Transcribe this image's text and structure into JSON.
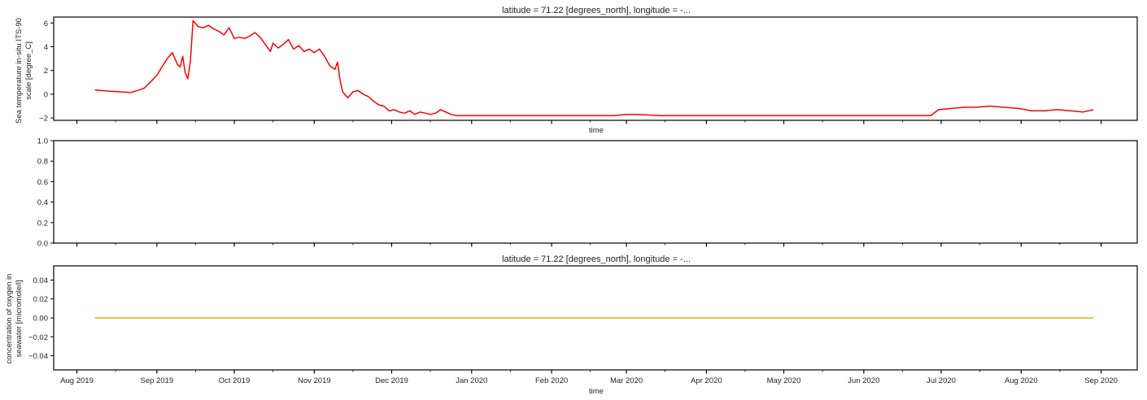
{
  "chart_data": [
    {
      "type": "line",
      "title": "latitude = 71.22 [degrees_north], longitude = -...",
      "xlabel": "time",
      "ylabel": [
        "Sea temperature in-situ ITS-90",
        "scale [degree_C]"
      ],
      "x_axis": "date",
      "xlim": [
        "2019-07-23",
        "2020-09-15"
      ],
      "ylim": [
        -2.2,
        6.5
      ],
      "yticks": [
        -2,
        0,
        2,
        4,
        6
      ],
      "xticks": [
        "2019-08-01",
        "2019-09-01",
        "2019-10-01",
        "2019-11-01",
        "2019-12-01",
        "2020-01-01",
        "2020-02-01",
        "2020-03-01",
        "2020-04-01",
        "2020-05-01",
        "2020-06-01",
        "2020-07-01",
        "2020-08-01",
        "2020-09-01"
      ],
      "xtick_labels": [],
      "grid": false,
      "series": [
        {
          "color": "#ff0000",
          "x": [
            "2019-08-08",
            "2019-08-11",
            "2019-08-14",
            "2019-08-18",
            "2019-08-22",
            "2019-08-25",
            "2019-08-27",
            "2019-08-29",
            "2019-09-01",
            "2019-09-03",
            "2019-09-05",
            "2019-09-07",
            "2019-09-09",
            "2019-09-10",
            "2019-09-11",
            "2019-09-12",
            "2019-09-13",
            "2019-09-14",
            "2019-09-15",
            "2019-09-17",
            "2019-09-19",
            "2019-09-21",
            "2019-09-23",
            "2019-09-25",
            "2019-09-27",
            "2019-09-29",
            "2019-10-01",
            "2019-10-03",
            "2019-10-05",
            "2019-10-07",
            "2019-10-09",
            "2019-10-11",
            "2019-10-13",
            "2019-10-15",
            "2019-10-16",
            "2019-10-18",
            "2019-10-20",
            "2019-10-22",
            "2019-10-24",
            "2019-10-26",
            "2019-10-28",
            "2019-10-30",
            "2019-11-01",
            "2019-11-03",
            "2019-11-05",
            "2019-11-07",
            "2019-11-09",
            "2019-11-10",
            "2019-11-11",
            "2019-11-12",
            "2019-11-14",
            "2019-11-16",
            "2019-11-18",
            "2019-11-20",
            "2019-11-22",
            "2019-11-24",
            "2019-11-26",
            "2019-11-28",
            "2019-11-30",
            "2019-12-02",
            "2019-12-04",
            "2019-12-06",
            "2019-12-08",
            "2019-12-10",
            "2019-12-12",
            "2019-12-14",
            "2019-12-16",
            "2019-12-18",
            "2019-12-20",
            "2019-12-22",
            "2019-12-24",
            "2019-12-26",
            "2019-12-28",
            "2019-12-30",
            "2020-01-05",
            "2020-01-15",
            "2020-01-25",
            "2020-02-05",
            "2020-02-15",
            "2020-02-20",
            "2020-02-25",
            "2020-03-01",
            "2020-03-05",
            "2020-03-15",
            "2020-04-01",
            "2020-04-15",
            "2020-05-01",
            "2020-05-15",
            "2020-06-01",
            "2020-06-10",
            "2020-06-20",
            "2020-06-27",
            "2020-06-30",
            "2020-07-05",
            "2020-07-10",
            "2020-07-15",
            "2020-07-20",
            "2020-07-25",
            "2020-07-31",
            "2020-08-05",
            "2020-08-10",
            "2020-08-15",
            "2020-08-20",
            "2020-08-25",
            "2020-08-29"
          ],
          "y": [
            0.35,
            0.3,
            0.25,
            0.2,
            0.15,
            0.35,
            0.5,
            0.9,
            1.6,
            2.3,
            3.0,
            3.5,
            2.5,
            2.3,
            3.2,
            1.8,
            1.3,
            2.8,
            6.2,
            5.7,
            5.6,
            5.8,
            5.5,
            5.3,
            5.0,
            5.6,
            4.7,
            4.8,
            4.7,
            4.9,
            5.2,
            4.8,
            4.2,
            3.6,
            4.3,
            3.9,
            4.2,
            4.6,
            3.8,
            4.1,
            3.6,
            3.8,
            3.5,
            3.8,
            3.2,
            2.4,
            2.1,
            2.7,
            1.2,
            0.2,
            -0.3,
            0.2,
            0.3,
            0.0,
            -0.2,
            -0.6,
            -0.9,
            -1.0,
            -1.4,
            -1.3,
            -1.5,
            -1.6,
            -1.4,
            -1.7,
            -1.5,
            -1.6,
            -1.7,
            -1.6,
            -1.3,
            -1.5,
            -1.7,
            -1.8,
            -1.8,
            -1.8,
            -1.8,
            -1.8,
            -1.8,
            -1.8,
            -1.8,
            -1.8,
            -1.8,
            -1.7,
            -1.7,
            -1.8,
            -1.8,
            -1.8,
            -1.8,
            -1.8,
            -1.8,
            -1.8,
            -1.8,
            -1.8,
            -1.3,
            -1.2,
            -1.1,
            -1.1,
            -1.0,
            -1.1,
            -1.2,
            -1.4,
            -1.4,
            -1.3,
            -1.4,
            -1.5,
            -1.3
          ]
        }
      ]
    },
    {
      "type": "line",
      "title": "",
      "xlabel": "",
      "ylabel": [],
      "x_axis": "date",
      "xlim": [
        "2019-07-23",
        "2020-09-15"
      ],
      "ylim": [
        0,
        1
      ],
      "yticks": [
        0.0,
        0.2,
        0.4,
        0.6,
        0.8,
        1.0
      ],
      "xticks": [
        "2019-08-01",
        "2019-09-01",
        "2019-10-01",
        "2019-11-01",
        "2019-12-01",
        "2020-01-01",
        "2020-02-01",
        "2020-03-01",
        "2020-04-01",
        "2020-05-01",
        "2020-06-01",
        "2020-07-01",
        "2020-08-01",
        "2020-09-01"
      ],
      "xtick_labels": [],
      "grid": false,
      "series": []
    },
    {
      "type": "line",
      "title": "latitude = 71.22 [degrees_north], longitude = -...",
      "xlabel": "time",
      "ylabel": [
        "concentration of oxygen in",
        "seawater [micromole/l]"
      ],
      "x_axis": "date",
      "xlim": [
        "2019-07-23",
        "2020-09-15"
      ],
      "ylim": [
        -0.055,
        0.055
      ],
      "yticks": [
        -0.04,
        -0.02,
        0.0,
        0.02,
        0.04
      ],
      "xticks": [
        "2019-08-01",
        "2019-09-01",
        "2019-10-01",
        "2019-11-01",
        "2019-12-01",
        "2020-01-01",
        "2020-02-01",
        "2020-03-01",
        "2020-04-01",
        "2020-05-01",
        "2020-06-01",
        "2020-07-01",
        "2020-08-01",
        "2020-09-01"
      ],
      "xtick_labels": [
        "Aug 2019",
        "Sep 2019",
        "Oct 2019",
        "Nov 2019",
        "Dec 2019",
        "Jan 2020",
        "Feb 2020",
        "Mar 2020",
        "Apr 2020",
        "May 2020",
        "Jun 2020",
        "Jul 2020",
        "Aug 2020",
        "Sep 2020"
      ],
      "grid": false,
      "series": [
        {
          "color": "#ffa500",
          "x": [
            "2019-08-08",
            "2020-08-29"
          ],
          "y": [
            0.0,
            0.0
          ]
        }
      ]
    }
  ]
}
